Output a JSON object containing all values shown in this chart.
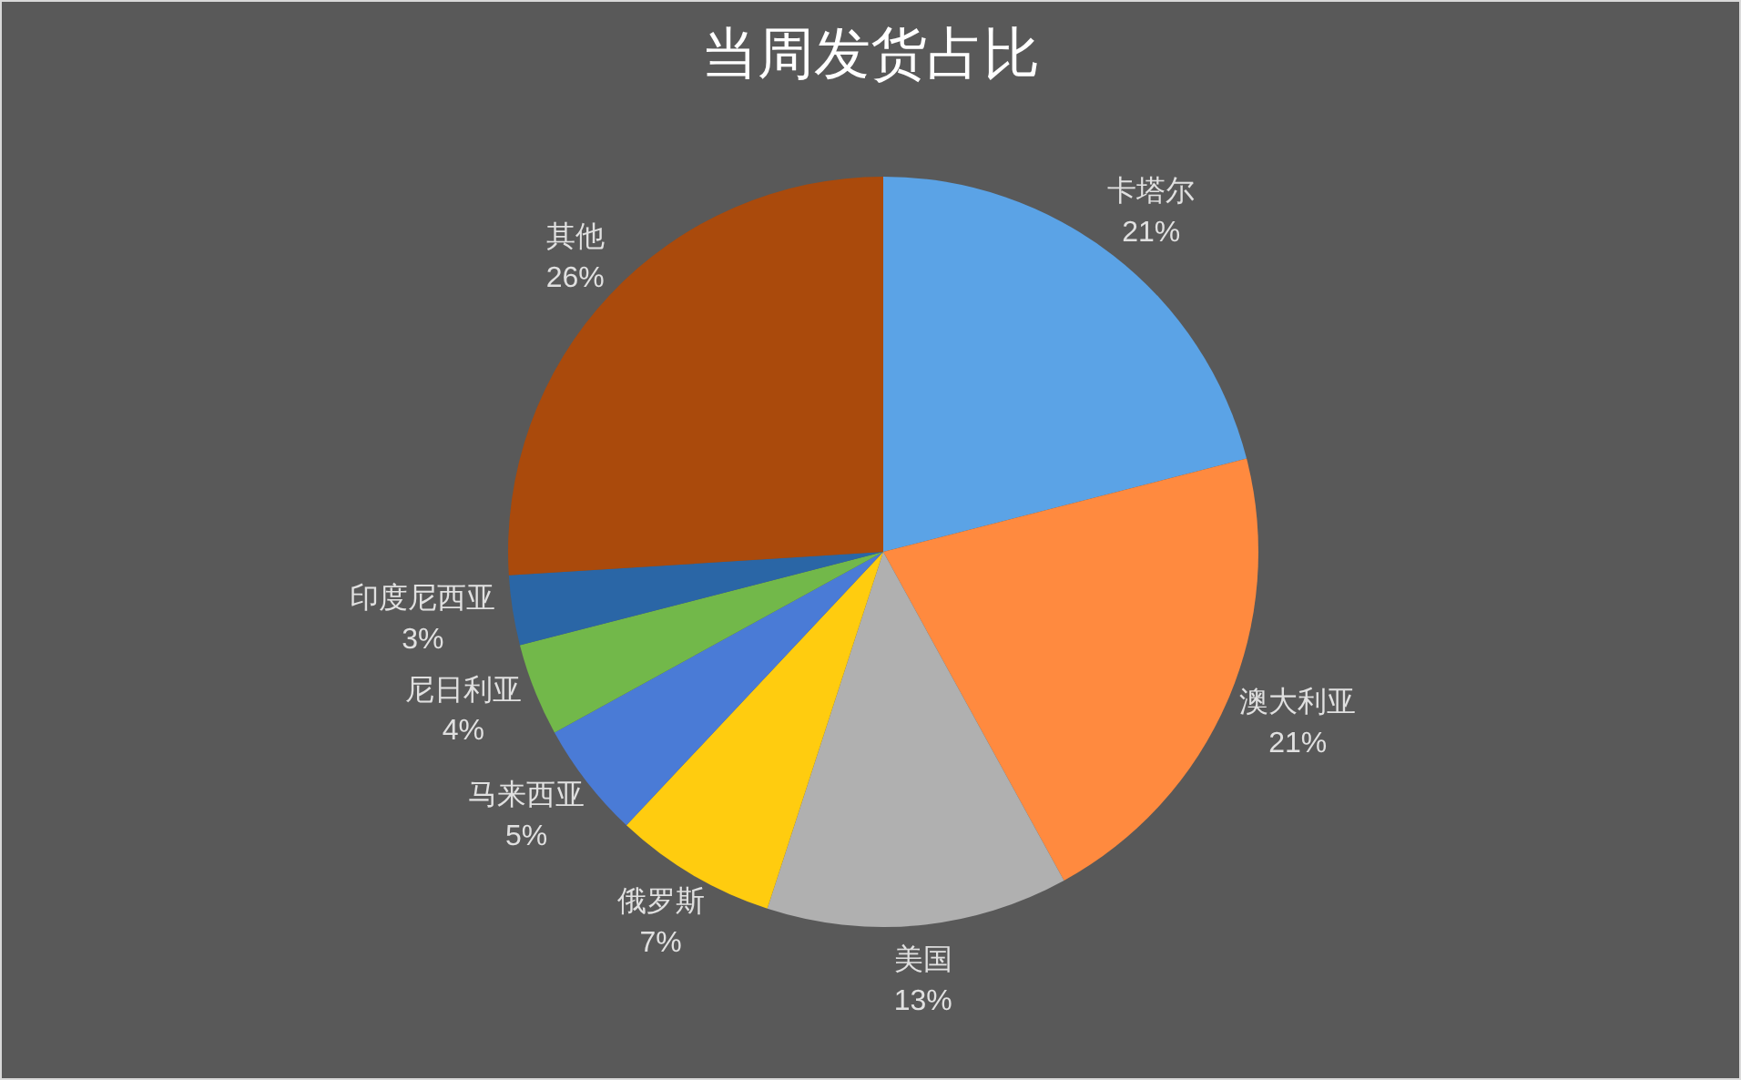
{
  "chart_data": {
    "type": "pie",
    "title": "当周发货占比",
    "categories": [
      "卡塔尔",
      "澳大利亚",
      "美国",
      "俄罗斯",
      "马来西亚",
      "尼日利亚",
      "印度尼西亚",
      "其他"
    ],
    "values": [
      21,
      21,
      13,
      7,
      5,
      4,
      3,
      26
    ],
    "value_labels": [
      "21%",
      "21%",
      "13%",
      "7%",
      "5%",
      "4%",
      "3%",
      "26%"
    ],
    "colors": [
      "#5ba3e6",
      "#ff8a3f",
      "#b0b0b0",
      "#ffcc0f",
      "#4a7bd6",
      "#72b84a",
      "#2a66a6",
      "#aa4a0c"
    ]
  }
}
